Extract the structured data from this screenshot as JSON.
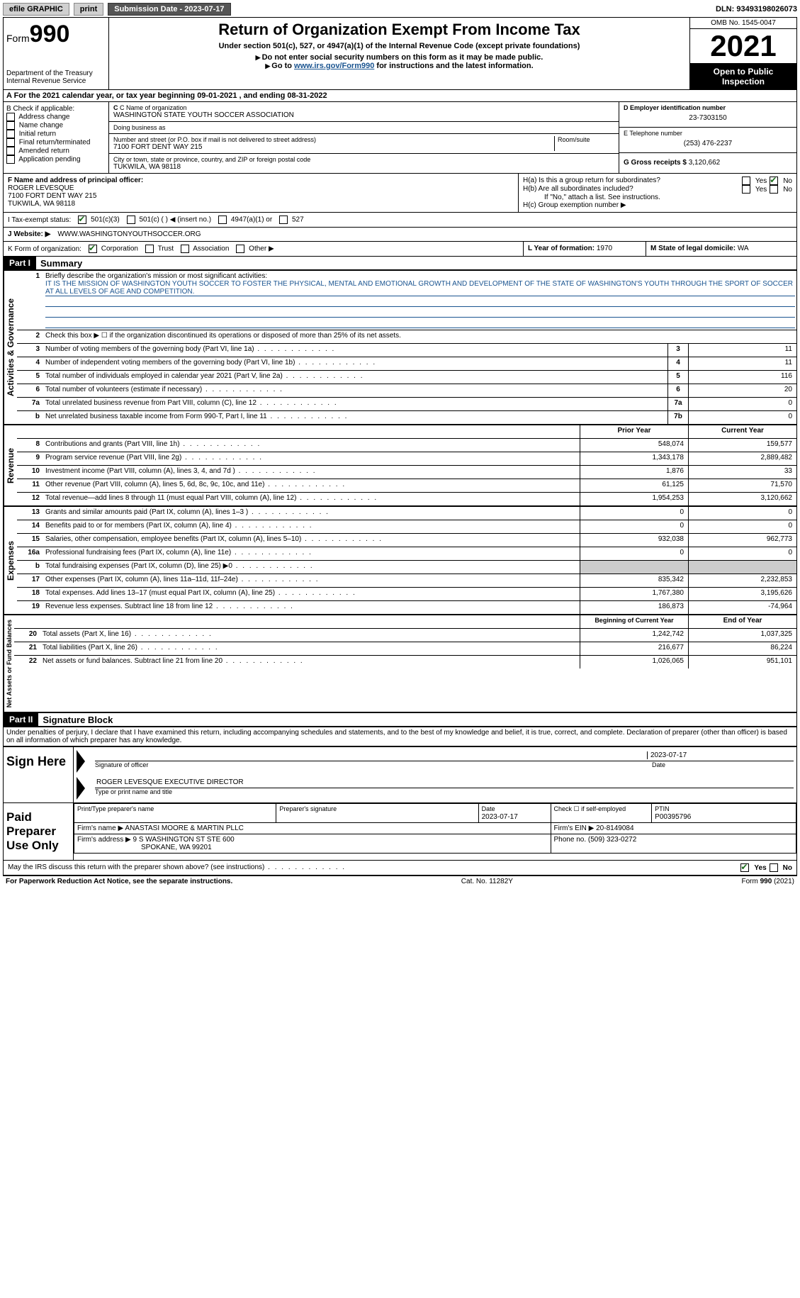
{
  "topbar": {
    "efile": "efile GRAPHIC",
    "print": "print",
    "sub_date_label": "Submission Date - 2023-07-17",
    "dln": "DLN: 93493198026073"
  },
  "header": {
    "form_prefix": "Form",
    "form_num": "990",
    "dept": "Department of the Treasury",
    "irs": "Internal Revenue Service",
    "title": "Return of Organization Exempt From Income Tax",
    "subtitle": "Under section 501(c), 527, or 4947(a)(1) of the Internal Revenue Code (except private foundations)",
    "warn": "Do not enter social security numbers on this form as it may be made public.",
    "goto_pre": "Go to ",
    "goto_link": "www.irs.gov/Form990",
    "goto_post": " for instructions and the latest information.",
    "omb": "OMB No. 1545-0047",
    "year": "2021",
    "open": "Open to Public Inspection"
  },
  "row_a": "A For the 2021 calendar year, or tax year beginning 09-01-2021   , and ending 08-31-2022",
  "col_b": {
    "header": "B Check if applicable:",
    "items": [
      "Address change",
      "Name change",
      "Initial return",
      "Final return/terminated",
      "Amended return",
      "Application pending"
    ]
  },
  "col_c": {
    "name_label": "C Name of organization",
    "name": "WASHINGTON STATE YOUTH SOCCER ASSOCIATION",
    "dba_label": "Doing business as",
    "dba": "",
    "street_label": "Number and street (or P.O. box if mail is not delivered to street address)",
    "room_label": "Room/suite",
    "street": "7100 FORT DENT WAY 215",
    "city_label": "City or town, state or province, country, and ZIP or foreign postal code",
    "city": "TUKWILA, WA  98118"
  },
  "col_de": {
    "d_label": "D Employer identification number",
    "d_val": "23-7303150",
    "e_label": "E Telephone number",
    "e_val": "(253) 476-2237",
    "g_label": "G Gross receipts $",
    "g_val": "3,120,662"
  },
  "row_f": {
    "label": "F Name and address of principal officer:",
    "name": "ROGER LEVESQUE",
    "street": "7100 FORT DENT WAY 215",
    "city": "TUKWILA, WA  98118"
  },
  "row_h": {
    "a": "H(a)  Is this a group return for subordinates?",
    "b": "H(b)  Are all subordinates included?",
    "b_note": "If \"No,\" attach a list. See instructions.",
    "c": "H(c)  Group exemption number ▶",
    "yes": "Yes",
    "no": "No"
  },
  "row_i": {
    "label": "I   Tax-exempt status:",
    "opt1": "501(c)(3)",
    "opt2": "501(c) (  ) ◀ (insert no.)",
    "opt3": "4947(a)(1) or",
    "opt4": "527"
  },
  "row_j": {
    "label": "J   Website: ▶",
    "val": "WWW.WASHINGTONYOUTHSOCCER.ORG"
  },
  "row_k": {
    "label": "K Form of organization:",
    "opts": [
      "Corporation",
      "Trust",
      "Association",
      "Other ▶"
    ],
    "l_label": "L Year of formation:",
    "l_val": "1970",
    "m_label": "M State of legal domicile:",
    "m_val": "WA"
  },
  "part1": {
    "hdr": "Part I",
    "title": "Summary"
  },
  "summary": {
    "q1": "Briefly describe the organization's mission or most significant activities:",
    "q1_text": "IT IS THE MISSION OF WASHINGTON YOUTH SOCCER TO FOSTER THE PHYSICAL, MENTAL AND EMOTIONAL GROWTH AND DEVELOPMENT OF THE STATE OF WASHINGTON'S YOUTH THROUGH THE SPORT OF SOCCER AT ALL LEVELS OF AGE AND COMPETITION.",
    "q2": "Check this box ▶ ☐ if the organization discontinued its operations or disposed of more than 25% of its net assets.",
    "rows_gov": [
      {
        "n": "3",
        "label": "Number of voting members of the governing body (Part VI, line 1a)",
        "box": "3",
        "val": "11"
      },
      {
        "n": "4",
        "label": "Number of independent voting members of the governing body (Part VI, line 1b)",
        "box": "4",
        "val": "11"
      },
      {
        "n": "5",
        "label": "Total number of individuals employed in calendar year 2021 (Part V, line 2a)",
        "box": "5",
        "val": "116"
      },
      {
        "n": "6",
        "label": "Total number of volunteers (estimate if necessary)",
        "box": "6",
        "val": "20"
      },
      {
        "n": "7a",
        "label": "Total unrelated business revenue from Part VIII, column (C), line 12",
        "box": "7a",
        "val": "0"
      },
      {
        "n": "b",
        "label": "Net unrelated business taxable income from Form 990-T, Part I, line 11",
        "box": "7b",
        "val": "0"
      }
    ],
    "col_prior": "Prior Year",
    "col_current": "Current Year",
    "rows_rev": [
      {
        "n": "8",
        "label": "Contributions and grants (Part VIII, line 1h)",
        "py": "548,074",
        "cy": "159,577"
      },
      {
        "n": "9",
        "label": "Program service revenue (Part VIII, line 2g)",
        "py": "1,343,178",
        "cy": "2,889,482"
      },
      {
        "n": "10",
        "label": "Investment income (Part VIII, column (A), lines 3, 4, and 7d )",
        "py": "1,876",
        "cy": "33"
      },
      {
        "n": "11",
        "label": "Other revenue (Part VIII, column (A), lines 5, 6d, 8c, 9c, 10c, and 11e)",
        "py": "61,125",
        "cy": "71,570"
      },
      {
        "n": "12",
        "label": "Total revenue—add lines 8 through 11 (must equal Part VIII, column (A), line 12)",
        "py": "1,954,253",
        "cy": "3,120,662"
      }
    ],
    "rows_exp": [
      {
        "n": "13",
        "label": "Grants and similar amounts paid (Part IX, column (A), lines 1–3 )",
        "py": "0",
        "cy": "0"
      },
      {
        "n": "14",
        "label": "Benefits paid to or for members (Part IX, column (A), line 4)",
        "py": "0",
        "cy": "0"
      },
      {
        "n": "15",
        "label": "Salaries, other compensation, employee benefits (Part IX, column (A), lines 5–10)",
        "py": "932,038",
        "cy": "962,773"
      },
      {
        "n": "16a",
        "label": "Professional fundraising fees (Part IX, column (A), line 11e)",
        "py": "0",
        "cy": "0"
      },
      {
        "n": "b",
        "label": "Total fundraising expenses (Part IX, column (D), line 25) ▶0",
        "py": "shaded",
        "cy": "shaded"
      },
      {
        "n": "17",
        "label": "Other expenses (Part IX, column (A), lines 11a–11d, 11f–24e)",
        "py": "835,342",
        "cy": "2,232,853"
      },
      {
        "n": "18",
        "label": "Total expenses. Add lines 13–17 (must equal Part IX, column (A), line 25)",
        "py": "1,767,380",
        "cy": "3,195,626"
      },
      {
        "n": "19",
        "label": "Revenue less expenses. Subtract line 18 from line 12",
        "py": "186,873",
        "cy": "-74,964"
      }
    ],
    "col_begin": "Beginning of Current Year",
    "col_end": "End of Year",
    "rows_net": [
      {
        "n": "20",
        "label": "Total assets (Part X, line 16)",
        "py": "1,242,742",
        "cy": "1,037,325"
      },
      {
        "n": "21",
        "label": "Total liabilities (Part X, line 26)",
        "py": "216,677",
        "cy": "86,224"
      },
      {
        "n": "22",
        "label": "Net assets or fund balances. Subtract line 21 from line 20",
        "py": "1,026,065",
        "cy": "951,101"
      }
    ],
    "vtext_gov": "Activities & Governance",
    "vtext_rev": "Revenue",
    "vtext_exp": "Expenses",
    "vtext_net": "Net Assets or Fund Balances"
  },
  "part2": {
    "hdr": "Part II",
    "title": "Signature Block",
    "declaration": "Under penalties of perjury, I declare that I have examined this return, including accompanying schedules and statements, and to the best of my knowledge and belief, it is true, correct, and complete. Declaration of preparer (other than officer) is based on all information of which preparer has any knowledge."
  },
  "sign_here": {
    "label": "Sign Here",
    "sig_label": "Signature of officer",
    "date_label": "Date",
    "date": "2023-07-17",
    "name": "ROGER LEVESQUE  EXECUTIVE DIRECTOR",
    "name_label": "Type or print name and title"
  },
  "paid_prep": {
    "label": "Paid Preparer Use Only",
    "h_name": "Print/Type preparer's name",
    "h_sig": "Preparer's signature",
    "h_date": "Date",
    "date": "2023-07-17",
    "h_check": "Check ☐ if self-employed",
    "h_ptin": "PTIN",
    "ptin": "P00395796",
    "firm_label": "Firm's name    ▶",
    "firm": "ANASTASI MOORE & MARTIN PLLC",
    "ein_label": "Firm's EIN ▶",
    "ein": "20-8149084",
    "addr_label": "Firm's address ▶",
    "addr1": "9 S WASHINGTON ST STE 600",
    "addr2": "SPOKANE, WA  99201",
    "phone_label": "Phone no.",
    "phone": "(509) 323-0272"
  },
  "discuss": "May the IRS discuss this return with the preparer shown above? (see instructions)",
  "footer": {
    "left": "For Paperwork Reduction Act Notice, see the separate instructions.",
    "mid": "Cat. No. 11282Y",
    "right": "Form 990 (2021)"
  }
}
